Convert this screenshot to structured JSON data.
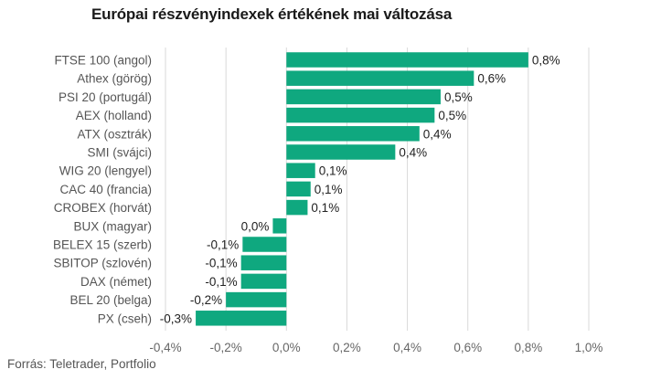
{
  "chart_data": {
    "type": "bar",
    "orientation": "horizontal",
    "title": "Európai részvényindexek értékének mai változása",
    "source": "Forrás: Teletrader, Portfolio",
    "categories": [
      "FTSE 100 (angol)",
      "Athex (görög)",
      "PSI 20 (portugál)",
      "AEX (holland)",
      "ATX (osztrák)",
      "SMI (svájci)",
      "WIG 20 (lengyel)",
      "CAC 40 (francia)",
      "CROBEX (horvát)",
      "BUX (magyar)",
      "BELEX 15 (szerb)",
      "SBITOP (szlovén)",
      "DAX (német)",
      "BEL 20 (belga)",
      "PX (cseh)"
    ],
    "values": [
      0.8,
      0.62,
      0.51,
      0.49,
      0.44,
      0.36,
      0.095,
      0.08,
      0.07,
      -0.045,
      -0.145,
      -0.15,
      -0.15,
      -0.2,
      -0.3
    ],
    "value_labels": [
      "0,8%",
      "0,6%",
      "0,5%",
      "0,5%",
      "0,4%",
      "0,4%",
      "0,1%",
      "0,1%",
      "0,1%",
      "0,0%",
      "-0,1%",
      "-0,1%",
      "-0,1%",
      "-0,2%",
      "-0,3%"
    ],
    "xlim": [
      -0.4,
      1.0
    ],
    "xticks": [
      -0.4,
      -0.2,
      0.0,
      0.2,
      0.4,
      0.6,
      0.8,
      1.0
    ],
    "xtick_labels": [
      "-0,4%",
      "-0,2%",
      "0,0%",
      "0,2%",
      "0,4%",
      "0,6%",
      "0,8%",
      "1,0%"
    ],
    "grid": true,
    "bar_color": "#0fa87f",
    "grid_color": "#d9d9d9"
  }
}
